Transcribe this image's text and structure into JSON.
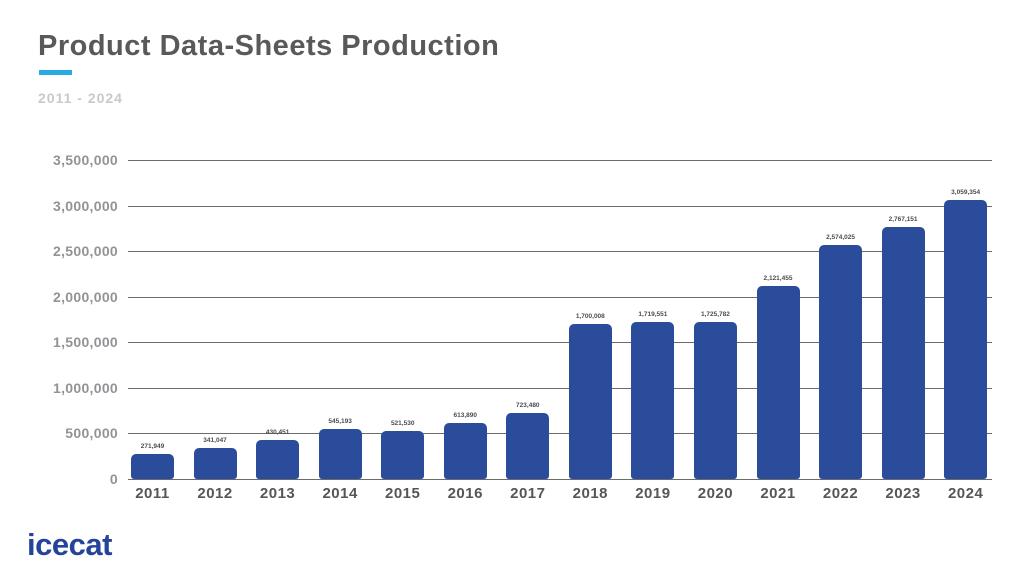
{
  "header": {
    "title": "Product Data-Sheets Production",
    "subtitle": "2011 - 2024"
  },
  "footer": {
    "logo_text": "icecat"
  },
  "colors": {
    "bar": "#2b4b9b",
    "accent_underline": "#29abe2",
    "title": "#58595b",
    "subtitle": "#c9c9c9",
    "grid": "#6b6b6b",
    "y_axis_label": "#919396",
    "x_axis_label": "#55565a",
    "value_label": "#4c4c4c",
    "logo": "#24449c",
    "background": "#ffffff"
  },
  "chart_data": {
    "type": "bar",
    "title": "Product Data-Sheets Production",
    "subtitle": "2011 - 2024",
    "xlabel": "",
    "ylabel": "",
    "categories": [
      "2011",
      "2012",
      "2013",
      "2014",
      "2015",
      "2016",
      "2017",
      "2018",
      "2019",
      "2020",
      "2021",
      "2022",
      "2023",
      "2024"
    ],
    "values": [
      271949,
      341047,
      430451,
      545193,
      521530,
      613890,
      723480,
      1700008,
      1719551,
      1725782,
      2121455,
      2574025,
      2767151,
      3059354
    ],
    "value_labels": [
      "271,949",
      "341,047",
      "430,451",
      "545,193",
      "521,530",
      "613,890",
      "723,480",
      "1,700,008",
      "1,719,551",
      "1,725,782",
      "2,121,455",
      "2,574,025",
      "2,767,151",
      "3,059,354"
    ],
    "ylim": [
      0,
      3500000
    ],
    "yticks": [
      0,
      500000,
      1000000,
      1500000,
      2000000,
      2500000,
      3000000,
      3500000
    ],
    "ytick_labels": [
      "0",
      "500,000",
      "1,000,000",
      "1,500,000",
      "2,000,000",
      "2,500,000",
      "3,000,000",
      "3,500,000"
    ],
    "grid": true,
    "legend": false,
    "bar_color": "#2b4b9b"
  }
}
